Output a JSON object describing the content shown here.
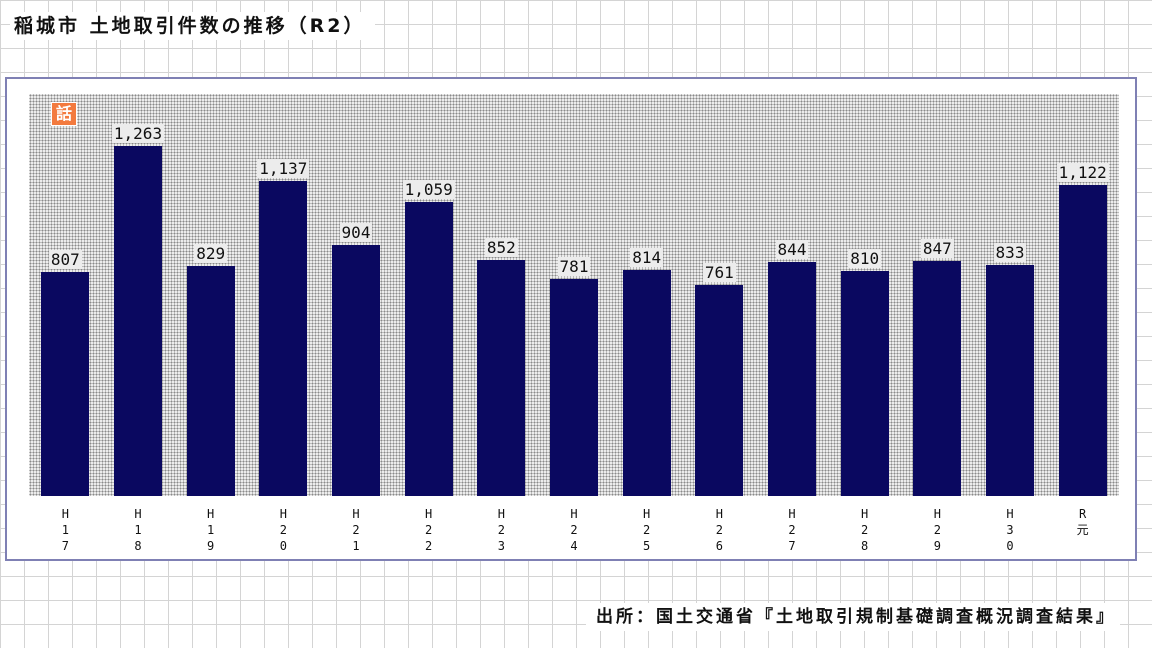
{
  "header": {
    "title": "稲城市 土地取引件数の推移（R2）"
  },
  "footer": {
    "source": "出所：国土交通省『土地取引規制基礎調査概況調査結果』"
  },
  "badge": {
    "label": "話"
  },
  "colors": {
    "bar": "#0a0860",
    "frame": "#7f80b4",
    "badge": "#f37a3e"
  },
  "chart_data": {
    "type": "bar",
    "title": "稲城市 土地取引件数の推移（R2）",
    "categories": [
      "H17",
      "H18",
      "H19",
      "H20",
      "H21",
      "H22",
      "H23",
      "H24",
      "H25",
      "H26",
      "H27",
      "H28",
      "H29",
      "H30",
      "R元"
    ],
    "category_labels": [
      "H\n1\n7",
      "H\n1\n8",
      "H\n1\n9",
      "H\n2\n0",
      "H\n2\n1",
      "H\n2\n2",
      "H\n2\n3",
      "H\n2\n4",
      "H\n2\n5",
      "H\n2\n6",
      "H\n2\n7",
      "H\n2\n8",
      "H\n2\n9",
      "H\n3\n0",
      "R\n元"
    ],
    "values": [
      807,
      1263,
      829,
      1137,
      904,
      1059,
      852,
      781,
      814,
      761,
      844,
      810,
      847,
      833,
      1122
    ],
    "value_labels": [
      "807",
      "1,263",
      "829",
      "1,137",
      "904",
      "1,059",
      "852",
      "781",
      "814",
      "761",
      "844",
      "810",
      "847",
      "833",
      "1,122"
    ],
    "ylim": [
      0,
      1450
    ],
    "grid": false,
    "legend": "none"
  }
}
